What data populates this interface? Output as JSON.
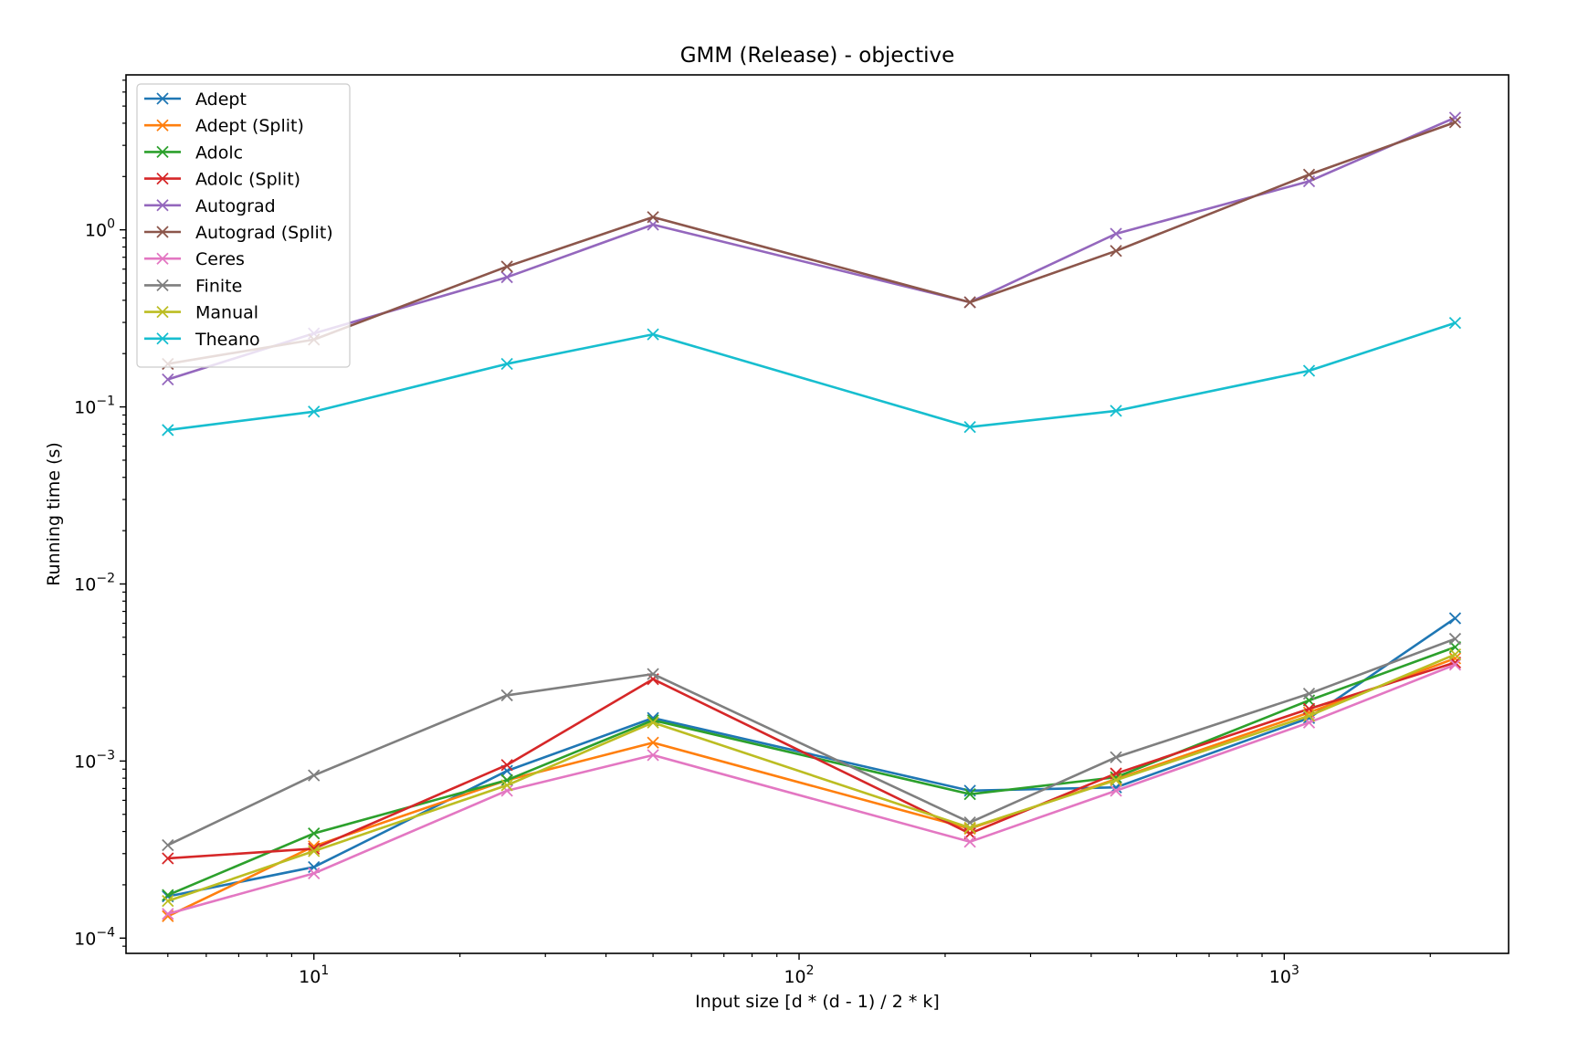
{
  "chart_data": {
    "type": "line",
    "title": "GMM (Release) - objective",
    "xlabel": "Input size [d * (d - 1) / 2 * k]",
    "ylabel": "Running time (s)",
    "xscale": "log",
    "yscale": "log",
    "xlim": [
      4.1,
      2900
    ],
    "ylim": [
      8.2e-05,
      7.5
    ],
    "xticks": [
      {
        "value": 10,
        "base": "10",
        "exp": "1"
      },
      {
        "value": 100,
        "base": "10",
        "exp": "2"
      },
      {
        "value": 1000,
        "base": "10",
        "exp": "3"
      }
    ],
    "yticks": [
      {
        "value": 0.0001,
        "base": "10",
        "exp": "−4"
      },
      {
        "value": 0.001,
        "base": "10",
        "exp": "−3"
      },
      {
        "value": 0.01,
        "base": "10",
        "exp": "−2"
      },
      {
        "value": 0.1,
        "base": "10",
        "exp": "−1"
      },
      {
        "value": 1,
        "base": "10",
        "exp": "0"
      }
    ],
    "grid": false,
    "legend_position": "top-left",
    "marker": "x",
    "x": [
      5,
      10,
      25,
      50,
      225,
      450,
      1125,
      2250
    ],
    "series": [
      {
        "name": "Adept",
        "color": "#1f77b4",
        "values": [
          0.000172,
          0.000252,
          0.00088,
          0.00175,
          0.00068,
          0.00071,
          0.00175,
          0.0064
        ]
      },
      {
        "name": "Adept (Split)",
        "color": "#ff7f0e",
        "values": [
          0.000133,
          0.00033,
          0.00078,
          0.00127,
          0.000415,
          0.00079,
          0.00188,
          0.0038
        ]
      },
      {
        "name": "Adolc",
        "color": "#2ca02c",
        "values": [
          0.000175,
          0.00039,
          0.00078,
          0.0017,
          0.00065,
          0.00081,
          0.0022,
          0.0044
        ]
      },
      {
        "name": "Adolc (Split)",
        "color": "#d62728",
        "values": [
          0.000282,
          0.00032,
          0.00095,
          0.0029,
          0.00039,
          0.00085,
          0.00197,
          0.0036
        ]
      },
      {
        "name": "Autograd",
        "color": "#9467bd",
        "values": [
          0.143,
          0.26,
          0.54,
          1.07,
          0.39,
          0.95,
          1.88,
          4.3
        ]
      },
      {
        "name": "Autograd (Split)",
        "color": "#8c564b",
        "values": [
          0.175,
          0.24,
          0.62,
          1.18,
          0.39,
          0.76,
          2.05,
          4.05
        ]
      },
      {
        "name": "Ceres",
        "color": "#e377c2",
        "values": [
          0.000137,
          0.000232,
          0.00068,
          0.00108,
          0.00035,
          0.00068,
          0.00165,
          0.0035
        ]
      },
      {
        "name": "Finite",
        "color": "#7f7f7f",
        "values": [
          0.000335,
          0.00083,
          0.00235,
          0.0031,
          0.00045,
          0.00105,
          0.0024,
          0.0049
        ]
      },
      {
        "name": "Manual",
        "color": "#bcbd22",
        "values": [
          0.000162,
          0.00031,
          0.00073,
          0.00165,
          0.00042,
          0.00078,
          0.0018,
          0.004
        ]
      },
      {
        "name": "Theano",
        "color": "#17becf",
        "values": [
          0.074,
          0.094,
          0.175,
          0.257,
          0.077,
          0.095,
          0.16,
          0.298
        ]
      }
    ]
  }
}
